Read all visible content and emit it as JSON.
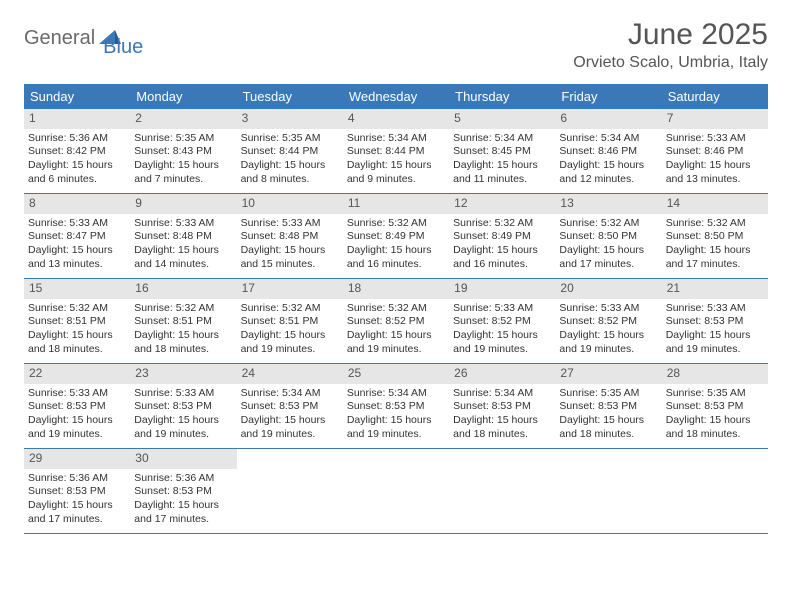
{
  "logo": {
    "text1": "General",
    "text2": "Blue"
  },
  "title": "June 2025",
  "location": "Orvieto Scalo, Umbria, Italy",
  "colors": {
    "header_bg": "#3a78b8",
    "header_text": "#ffffff",
    "daynum_bg": "#e6e6e6",
    "text": "#333333",
    "rule": "#3a78b8"
  },
  "day_names": [
    "Sunday",
    "Monday",
    "Tuesday",
    "Wednesday",
    "Thursday",
    "Friday",
    "Saturday"
  ],
  "weeks": [
    [
      {
        "n": "1",
        "sr": "Sunrise: 5:36 AM",
        "ss": "Sunset: 8:42 PM",
        "d1": "Daylight: 15 hours",
        "d2": "and 6 minutes."
      },
      {
        "n": "2",
        "sr": "Sunrise: 5:35 AM",
        "ss": "Sunset: 8:43 PM",
        "d1": "Daylight: 15 hours",
        "d2": "and 7 minutes."
      },
      {
        "n": "3",
        "sr": "Sunrise: 5:35 AM",
        "ss": "Sunset: 8:44 PM",
        "d1": "Daylight: 15 hours",
        "d2": "and 8 minutes."
      },
      {
        "n": "4",
        "sr": "Sunrise: 5:34 AM",
        "ss": "Sunset: 8:44 PM",
        "d1": "Daylight: 15 hours",
        "d2": "and 9 minutes."
      },
      {
        "n": "5",
        "sr": "Sunrise: 5:34 AM",
        "ss": "Sunset: 8:45 PM",
        "d1": "Daylight: 15 hours",
        "d2": "and 11 minutes."
      },
      {
        "n": "6",
        "sr": "Sunrise: 5:34 AM",
        "ss": "Sunset: 8:46 PM",
        "d1": "Daylight: 15 hours",
        "d2": "and 12 minutes."
      },
      {
        "n": "7",
        "sr": "Sunrise: 5:33 AM",
        "ss": "Sunset: 8:46 PM",
        "d1": "Daylight: 15 hours",
        "d2": "and 13 minutes."
      }
    ],
    [
      {
        "n": "8",
        "sr": "Sunrise: 5:33 AM",
        "ss": "Sunset: 8:47 PM",
        "d1": "Daylight: 15 hours",
        "d2": "and 13 minutes."
      },
      {
        "n": "9",
        "sr": "Sunrise: 5:33 AM",
        "ss": "Sunset: 8:48 PM",
        "d1": "Daylight: 15 hours",
        "d2": "and 14 minutes."
      },
      {
        "n": "10",
        "sr": "Sunrise: 5:33 AM",
        "ss": "Sunset: 8:48 PM",
        "d1": "Daylight: 15 hours",
        "d2": "and 15 minutes."
      },
      {
        "n": "11",
        "sr": "Sunrise: 5:32 AM",
        "ss": "Sunset: 8:49 PM",
        "d1": "Daylight: 15 hours",
        "d2": "and 16 minutes."
      },
      {
        "n": "12",
        "sr": "Sunrise: 5:32 AM",
        "ss": "Sunset: 8:49 PM",
        "d1": "Daylight: 15 hours",
        "d2": "and 16 minutes."
      },
      {
        "n": "13",
        "sr": "Sunrise: 5:32 AM",
        "ss": "Sunset: 8:50 PM",
        "d1": "Daylight: 15 hours",
        "d2": "and 17 minutes."
      },
      {
        "n": "14",
        "sr": "Sunrise: 5:32 AM",
        "ss": "Sunset: 8:50 PM",
        "d1": "Daylight: 15 hours",
        "d2": "and 17 minutes."
      }
    ],
    [
      {
        "n": "15",
        "sr": "Sunrise: 5:32 AM",
        "ss": "Sunset: 8:51 PM",
        "d1": "Daylight: 15 hours",
        "d2": "and 18 minutes."
      },
      {
        "n": "16",
        "sr": "Sunrise: 5:32 AM",
        "ss": "Sunset: 8:51 PM",
        "d1": "Daylight: 15 hours",
        "d2": "and 18 minutes."
      },
      {
        "n": "17",
        "sr": "Sunrise: 5:32 AM",
        "ss": "Sunset: 8:51 PM",
        "d1": "Daylight: 15 hours",
        "d2": "and 19 minutes."
      },
      {
        "n": "18",
        "sr": "Sunrise: 5:32 AM",
        "ss": "Sunset: 8:52 PM",
        "d1": "Daylight: 15 hours",
        "d2": "and 19 minutes."
      },
      {
        "n": "19",
        "sr": "Sunrise: 5:33 AM",
        "ss": "Sunset: 8:52 PM",
        "d1": "Daylight: 15 hours",
        "d2": "and 19 minutes."
      },
      {
        "n": "20",
        "sr": "Sunrise: 5:33 AM",
        "ss": "Sunset: 8:52 PM",
        "d1": "Daylight: 15 hours",
        "d2": "and 19 minutes."
      },
      {
        "n": "21",
        "sr": "Sunrise: 5:33 AM",
        "ss": "Sunset: 8:53 PM",
        "d1": "Daylight: 15 hours",
        "d2": "and 19 minutes."
      }
    ],
    [
      {
        "n": "22",
        "sr": "Sunrise: 5:33 AM",
        "ss": "Sunset: 8:53 PM",
        "d1": "Daylight: 15 hours",
        "d2": "and 19 minutes."
      },
      {
        "n": "23",
        "sr": "Sunrise: 5:33 AM",
        "ss": "Sunset: 8:53 PM",
        "d1": "Daylight: 15 hours",
        "d2": "and 19 minutes."
      },
      {
        "n": "24",
        "sr": "Sunrise: 5:34 AM",
        "ss": "Sunset: 8:53 PM",
        "d1": "Daylight: 15 hours",
        "d2": "and 19 minutes."
      },
      {
        "n": "25",
        "sr": "Sunrise: 5:34 AM",
        "ss": "Sunset: 8:53 PM",
        "d1": "Daylight: 15 hours",
        "d2": "and 19 minutes."
      },
      {
        "n": "26",
        "sr": "Sunrise: 5:34 AM",
        "ss": "Sunset: 8:53 PM",
        "d1": "Daylight: 15 hours",
        "d2": "and 18 minutes."
      },
      {
        "n": "27",
        "sr": "Sunrise: 5:35 AM",
        "ss": "Sunset: 8:53 PM",
        "d1": "Daylight: 15 hours",
        "d2": "and 18 minutes."
      },
      {
        "n": "28",
        "sr": "Sunrise: 5:35 AM",
        "ss": "Sunset: 8:53 PM",
        "d1": "Daylight: 15 hours",
        "d2": "and 18 minutes."
      }
    ],
    [
      {
        "n": "29",
        "sr": "Sunrise: 5:36 AM",
        "ss": "Sunset: 8:53 PM",
        "d1": "Daylight: 15 hours",
        "d2": "and 17 minutes."
      },
      {
        "n": "30",
        "sr": "Sunrise: 5:36 AM",
        "ss": "Sunset: 8:53 PM",
        "d1": "Daylight: 15 hours",
        "d2": "and 17 minutes."
      },
      null,
      null,
      null,
      null,
      null
    ]
  ]
}
